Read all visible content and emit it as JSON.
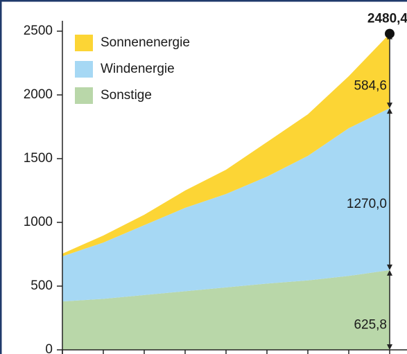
{
  "chart_data": {
    "type": "stacked_area",
    "categories": [
      null,
      null,
      null,
      null,
      null,
      null,
      null,
      null,
      null
    ],
    "series": [
      {
        "name": "Sonnenenergie",
        "color": "#fcd535",
        "values": [
          21,
          55,
          82,
          136,
          190,
          271,
          326,
          408,
          584.6
        ],
        "value_labels": [
          null,
          null,
          null,
          null,
          null,
          null,
          null,
          null,
          "584,6"
        ]
      },
      {
        "name": "Windenergie",
        "color": "#a6d8f4",
        "values": [
          354,
          442,
          548,
          654,
          733,
          839,
          977,
          1159,
          1270.0
        ],
        "value_labels": [
          null,
          null,
          null,
          null,
          null,
          null,
          null,
          null,
          "1270,0"
        ]
      },
      {
        "name": "Sonstige",
        "color": "#b9d7a9",
        "values": [
          380,
          400,
          430,
          460,
          490,
          520,
          545,
          580,
          625.8
        ],
        "value_labels": [
          null,
          null,
          null,
          null,
          null,
          null,
          null,
          null,
          "625,8"
        ]
      }
    ],
    "total": {
      "value": 2480.4,
      "label": "2480,4"
    },
    "ylim": [
      0,
      2500
    ],
    "yticks": [
      0,
      500,
      1000,
      1500,
      2000,
      2500
    ]
  }
}
